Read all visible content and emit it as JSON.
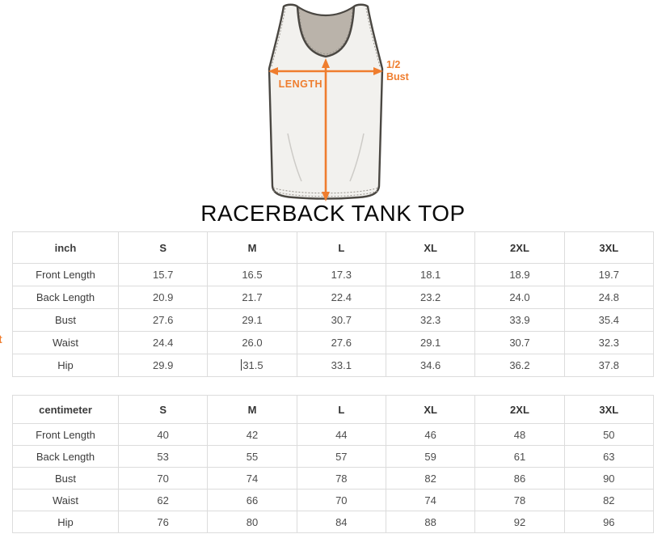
{
  "page": {
    "title": "RACERBACK TANK TOP",
    "edge_fragment": "t"
  },
  "diagram": {
    "length_label": "LENGTH",
    "half_bust_line1": "1/2",
    "half_bust_line2": "Bust",
    "accent_color": "#EF7D2E",
    "shirt_fill": "#F2F1EE",
    "neck_fill": "#BAB3AA",
    "outline_color": "#4A4742"
  },
  "tables": [
    {
      "unit": "inch",
      "columns": [
        "S",
        "M",
        "L",
        "XL",
        "2XL",
        "3XL"
      ],
      "rows": [
        {
          "label": "Front Length",
          "values": [
            "15.7",
            "16.5",
            "17.3",
            "18.1",
            "18.9",
            "19.7"
          ]
        },
        {
          "label": "Back Length",
          "values": [
            "20.9",
            "21.7",
            "22.4",
            "23.2",
            "24.0",
            "24.8"
          ]
        },
        {
          "label": "Bust",
          "values": [
            "27.6",
            "29.1",
            "30.7",
            "32.3",
            "33.9",
            "35.4"
          ]
        },
        {
          "label": "Waist",
          "values": [
            "24.4",
            "26.0",
            "27.6",
            "29.1",
            "30.7",
            "32.3"
          ]
        },
        {
          "label": "Hip",
          "values": [
            "29.9",
            "31.5",
            "33.1",
            "34.6",
            "36.2",
            "37.8"
          ],
          "caret_before_col": 1
        }
      ]
    },
    {
      "unit": "centimeter",
      "columns": [
        "S",
        "M",
        "L",
        "XL",
        "2XL",
        "3XL"
      ],
      "rows": [
        {
          "label": "Front Length",
          "values": [
            "40",
            "42",
            "44",
            "46",
            "48",
            "50"
          ]
        },
        {
          "label": "Back Length",
          "values": [
            "53",
            "55",
            "57",
            "59",
            "61",
            "63"
          ]
        },
        {
          "label": "Bust",
          "values": [
            "70",
            "74",
            "78",
            "82",
            "86",
            "90"
          ]
        },
        {
          "label": "Waist",
          "values": [
            "62",
            "66",
            "70",
            "74",
            "78",
            "82"
          ]
        },
        {
          "label": "Hip",
          "values": [
            "76",
            "80",
            "84",
            "88",
            "92",
            "96"
          ]
        }
      ]
    }
  ]
}
